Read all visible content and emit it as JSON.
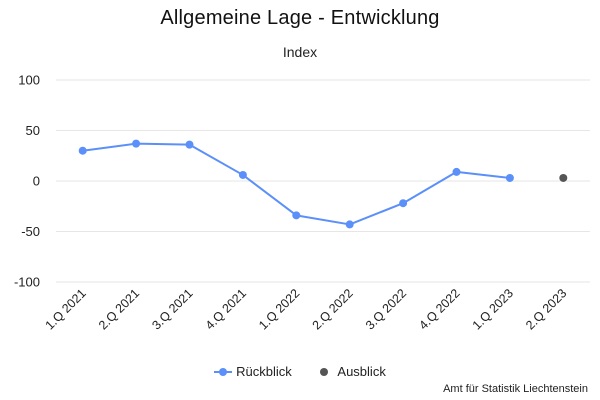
{
  "chart_data": {
    "type": "line",
    "title": "Allgemeine Lage - Entwicklung",
    "subtitle": "Index",
    "xlabel": "",
    "ylabel": "",
    "ylim": [
      -100,
      100
    ],
    "yticks": [
      100,
      50,
      0,
      -50,
      -100
    ],
    "categories": [
      "1.Q 2021",
      "2.Q 2021",
      "3.Q 2021",
      "4.Q 2021",
      "1.Q 2022",
      "2.Q 2022",
      "3.Q 2022",
      "4.Q 2022",
      "1.Q 2023",
      "2.Q 2023"
    ],
    "grid": true,
    "legend_position": "bottom",
    "series": [
      {
        "name": "Rückblick",
        "color": "#5b8ff9",
        "values": [
          30,
          37,
          36,
          6,
          -34,
          -43,
          -22,
          9,
          3,
          null
        ]
      },
      {
        "name": "Ausblick",
        "color": "#555555",
        "values": [
          null,
          null,
          null,
          null,
          null,
          null,
          null,
          null,
          null,
          3
        ]
      }
    ]
  },
  "credit": "Amt für Statistik Liechtenstein"
}
